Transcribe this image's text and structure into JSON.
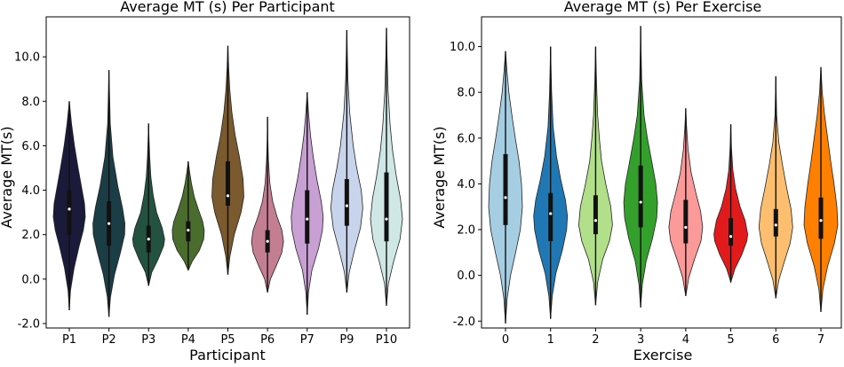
{
  "chart_data": [
    {
      "type": "violin",
      "title": "Average MT (s) Per Participant",
      "xlabel": "Participant",
      "ylabel": "Average MT(s)",
      "ylim": [
        -2.2,
        11.8
      ],
      "yticks": [
        -2.0,
        0.0,
        2.0,
        4.0,
        6.0,
        8.0,
        10.0
      ],
      "ytick_labels": [
        "-2.0",
        "0.0",
        "2.0",
        "4.0",
        "6.0",
        "8.0",
        "10.0"
      ],
      "grid": false,
      "categories": [
        "P1",
        "P2",
        "P3",
        "P4",
        "P5",
        "P6",
        "P7",
        "P9",
        "P10"
      ],
      "colors": [
        "#1a1a3a",
        "#1b3d46",
        "#235241",
        "#4a6d2e",
        "#7a5a2e",
        "#c47e92",
        "#c8a0d4",
        "#c8d4ec",
        "#cfe8e6"
      ],
      "violins": [
        {
          "min": -1.4,
          "max": 8.0,
          "q1": 2.0,
          "median": 3.15,
          "q3": 4.0,
          "profile": [
            [
              -1.4,
              0.0
            ],
            [
              -0.5,
              0.08
            ],
            [
              0.5,
              0.3
            ],
            [
              1.5,
              0.62
            ],
            [
              2.2,
              0.88
            ],
            [
              2.8,
              1.0
            ],
            [
              3.4,
              0.95
            ],
            [
              4.0,
              0.8
            ],
            [
              5.0,
              0.55
            ],
            [
              6.0,
              0.32
            ],
            [
              7.0,
              0.14
            ],
            [
              8.0,
              0.0
            ]
          ]
        },
        {
          "min": -1.7,
          "max": 9.4,
          "q1": 1.5,
          "median": 2.5,
          "q3": 3.5,
          "profile": [
            [
              -1.7,
              0.0
            ],
            [
              -0.8,
              0.1
            ],
            [
              0.2,
              0.35
            ],
            [
              1.2,
              0.72
            ],
            [
              2.0,
              0.98
            ],
            [
              2.5,
              1.0
            ],
            [
              3.2,
              0.85
            ],
            [
              4.2,
              0.55
            ],
            [
              5.5,
              0.25
            ],
            [
              7.0,
              0.08
            ],
            [
              8.5,
              0.03
            ],
            [
              9.4,
              0.0
            ]
          ]
        },
        {
          "min": -0.3,
          "max": 7.0,
          "q1": 1.2,
          "median": 1.8,
          "q3": 2.4,
          "profile": [
            [
              -0.3,
              0.0
            ],
            [
              0.3,
              0.2
            ],
            [
              0.9,
              0.6
            ],
            [
              1.5,
              0.95
            ],
            [
              1.8,
              1.0
            ],
            [
              2.3,
              0.85
            ],
            [
              3.0,
              0.5
            ],
            [
              3.8,
              0.28
            ],
            [
              4.6,
              0.14
            ],
            [
              5.5,
              0.07
            ],
            [
              6.3,
              0.03
            ],
            [
              7.0,
              0.0
            ]
          ]
        },
        {
          "min": 0.4,
          "max": 5.3,
          "q1": 1.7,
          "median": 2.2,
          "q3": 2.6,
          "profile": [
            [
              0.4,
              0.0
            ],
            [
              0.8,
              0.25
            ],
            [
              1.3,
              0.7
            ],
            [
              1.8,
              0.97
            ],
            [
              2.2,
              1.0
            ],
            [
              2.6,
              0.9
            ],
            [
              3.1,
              0.65
            ],
            [
              3.7,
              0.38
            ],
            [
              4.3,
              0.2
            ],
            [
              4.8,
              0.09
            ],
            [
              5.3,
              0.0
            ]
          ]
        },
        {
          "min": 0.2,
          "max": 10.5,
          "q1": 3.3,
          "median": 3.75,
          "q3": 5.3,
          "profile": [
            [
              0.2,
              0.0
            ],
            [
              1.0,
              0.12
            ],
            [
              2.0,
              0.4
            ],
            [
              3.0,
              0.82
            ],
            [
              3.7,
              1.0
            ],
            [
              4.5,
              0.95
            ],
            [
              5.5,
              0.72
            ],
            [
              6.5,
              0.45
            ],
            [
              7.5,
              0.25
            ],
            [
              8.5,
              0.12
            ],
            [
              9.5,
              0.05
            ],
            [
              10.5,
              0.0
            ]
          ]
        },
        {
          "min": -0.6,
          "max": 7.3,
          "q1": 1.2,
          "median": 1.7,
          "q3": 2.2,
          "profile": [
            [
              -0.6,
              0.0
            ],
            [
              0.0,
              0.18
            ],
            [
              0.6,
              0.55
            ],
            [
              1.2,
              0.9
            ],
            [
              1.7,
              1.0
            ],
            [
              2.2,
              0.9
            ],
            [
              2.8,
              0.6
            ],
            [
              3.5,
              0.32
            ],
            [
              4.3,
              0.15
            ],
            [
              5.3,
              0.06
            ],
            [
              6.3,
              0.02
            ],
            [
              7.3,
              0.0
            ]
          ]
        },
        {
          "min": -1.6,
          "max": 8.4,
          "q1": 1.6,
          "median": 2.7,
          "q3": 4.0,
          "profile": [
            [
              -1.6,
              0.0
            ],
            [
              -0.6,
              0.08
            ],
            [
              0.4,
              0.3
            ],
            [
              1.4,
              0.72
            ],
            [
              2.2,
              0.95
            ],
            [
              2.8,
              1.0
            ],
            [
              3.5,
              0.88
            ],
            [
              4.5,
              0.6
            ],
            [
              5.5,
              0.38
            ],
            [
              6.5,
              0.2
            ],
            [
              7.5,
              0.08
            ],
            [
              8.4,
              0.0
            ]
          ]
        },
        {
          "min": -0.6,
          "max": 11.2,
          "q1": 2.4,
          "median": 3.3,
          "q3": 4.5,
          "profile": [
            [
              -0.6,
              0.0
            ],
            [
              0.3,
              0.15
            ],
            [
              1.3,
              0.48
            ],
            [
              2.3,
              0.85
            ],
            [
              3.2,
              1.0
            ],
            [
              4.0,
              0.9
            ],
            [
              5.0,
              0.62
            ],
            [
              6.0,
              0.4
            ],
            [
              7.5,
              0.18
            ],
            [
              9.0,
              0.07
            ],
            [
              10.2,
              0.03
            ],
            [
              11.2,
              0.0
            ]
          ]
        },
        {
          "min": -1.2,
          "max": 11.3,
          "q1": 1.7,
          "median": 2.7,
          "q3": 4.8,
          "profile": [
            [
              -1.2,
              0.0
            ],
            [
              -0.2,
              0.12
            ],
            [
              0.8,
              0.45
            ],
            [
              1.8,
              0.85
            ],
            [
              2.7,
              1.0
            ],
            [
              3.6,
              0.88
            ],
            [
              4.6,
              0.62
            ],
            [
              5.8,
              0.38
            ],
            [
              7.0,
              0.22
            ],
            [
              8.5,
              0.1
            ],
            [
              10.0,
              0.04
            ],
            [
              11.3,
              0.0
            ]
          ]
        }
      ]
    },
    {
      "type": "violin",
      "title": "Average MT (s) Per Exercise",
      "xlabel": "Exercise",
      "ylabel": "Average MT(s)",
      "ylim": [
        -2.3,
        11.3
      ],
      "yticks": [
        -2.0,
        0.0,
        2.0,
        4.0,
        6.0,
        8.0,
        10.0
      ],
      "ytick_labels": [
        "-2.0",
        "0.0",
        "2.0",
        "4.0",
        "6.0",
        "8.0",
        "10.0"
      ],
      "grid": false,
      "categories": [
        "0",
        "1",
        "2",
        "3",
        "4",
        "5",
        "6",
        "7"
      ],
      "colors": [
        "#a6cee3",
        "#1f78b4",
        "#b2df8a",
        "#33a02c",
        "#fb9a99",
        "#e31a1c",
        "#fdbf6f",
        "#ff7f00"
      ],
      "violins": [
        {
          "min": -2.1,
          "max": 9.8,
          "q1": 2.2,
          "median": 3.4,
          "q3": 5.3,
          "profile": [
            [
              -2.1,
              0.0
            ],
            [
              -1.0,
              0.1
            ],
            [
              0.0,
              0.3
            ],
            [
              1.0,
              0.6
            ],
            [
              2.0,
              0.88
            ],
            [
              3.0,
              1.0
            ],
            [
              4.0,
              0.95
            ],
            [
              5.0,
              0.8
            ],
            [
              6.0,
              0.58
            ],
            [
              7.0,
              0.38
            ],
            [
              8.0,
              0.2
            ],
            [
              9.0,
              0.08
            ],
            [
              9.8,
              0.0
            ]
          ]
        },
        {
          "min": -1.9,
          "max": 10.0,
          "q1": 1.5,
          "median": 2.7,
          "q3": 3.6,
          "profile": [
            [
              -1.9,
              0.0
            ],
            [
              -0.9,
              0.1
            ],
            [
              0.1,
              0.32
            ],
            [
              1.1,
              0.7
            ],
            [
              2.0,
              0.95
            ],
            [
              2.6,
              1.0
            ],
            [
              3.3,
              0.88
            ],
            [
              4.2,
              0.6
            ],
            [
              5.2,
              0.35
            ],
            [
              6.5,
              0.15
            ],
            [
              8.0,
              0.06
            ],
            [
              10.0,
              0.0
            ]
          ]
        },
        {
          "min": -1.3,
          "max": 10.0,
          "q1": 1.8,
          "median": 2.4,
          "q3": 3.5,
          "profile": [
            [
              -1.3,
              0.0
            ],
            [
              -0.3,
              0.12
            ],
            [
              0.7,
              0.42
            ],
            [
              1.5,
              0.82
            ],
            [
              2.2,
              1.0
            ],
            [
              3.0,
              0.9
            ],
            [
              4.0,
              0.6
            ],
            [
              5.0,
              0.35
            ],
            [
              6.0,
              0.22
            ],
            [
              7.0,
              0.12
            ],
            [
              8.5,
              0.05
            ],
            [
              10.0,
              0.0
            ]
          ]
        },
        {
          "min": -1.4,
          "max": 10.9,
          "q1": 2.1,
          "median": 3.2,
          "q3": 4.8,
          "profile": [
            [
              -1.4,
              0.0
            ],
            [
              -0.4,
              0.1
            ],
            [
              0.6,
              0.32
            ],
            [
              1.6,
              0.7
            ],
            [
              2.5,
              0.95
            ],
            [
              3.2,
              1.0
            ],
            [
              4.0,
              0.9
            ],
            [
              5.0,
              0.65
            ],
            [
              6.0,
              0.4
            ],
            [
              7.0,
              0.2
            ],
            [
              8.5,
              0.06
            ],
            [
              10.0,
              0.02
            ],
            [
              10.9,
              0.0
            ]
          ]
        },
        {
          "min": -0.9,
          "max": 7.3,
          "q1": 1.4,
          "median": 2.1,
          "q3": 3.3,
          "profile": [
            [
              -0.9,
              0.0
            ],
            [
              -0.1,
              0.18
            ],
            [
              0.7,
              0.52
            ],
            [
              1.5,
              0.9
            ],
            [
              2.1,
              1.0
            ],
            [
              2.8,
              0.88
            ],
            [
              3.6,
              0.6
            ],
            [
              4.5,
              0.32
            ],
            [
              5.5,
              0.14
            ],
            [
              6.5,
              0.05
            ],
            [
              7.3,
              0.0
            ]
          ]
        },
        {
          "min": -0.3,
          "max": 6.6,
          "q1": 1.3,
          "median": 1.7,
          "q3": 2.5,
          "profile": [
            [
              -0.3,
              0.0
            ],
            [
              0.3,
              0.25
            ],
            [
              0.9,
              0.65
            ],
            [
              1.5,
              0.95
            ],
            [
              1.8,
              1.0
            ],
            [
              2.4,
              0.85
            ],
            [
              3.0,
              0.55
            ],
            [
              3.8,
              0.28
            ],
            [
              4.6,
              0.12
            ],
            [
              5.6,
              0.04
            ],
            [
              6.6,
              0.0
            ]
          ]
        },
        {
          "min": -1.0,
          "max": 8.7,
          "q1": 1.7,
          "median": 2.2,
          "q3": 2.9,
          "profile": [
            [
              -1.0,
              0.0
            ],
            [
              -0.2,
              0.18
            ],
            [
              0.6,
              0.5
            ],
            [
              1.4,
              0.85
            ],
            [
              2.1,
              1.0
            ],
            [
              2.9,
              0.9
            ],
            [
              3.8,
              0.65
            ],
            [
              4.8,
              0.4
            ],
            [
              5.8,
              0.18
            ],
            [
              7.0,
              0.05
            ],
            [
              8.7,
              0.0
            ]
          ]
        },
        {
          "min": -1.6,
          "max": 9.1,
          "q1": 1.6,
          "median": 2.4,
          "q3": 3.4,
          "profile": [
            [
              -1.6,
              0.0
            ],
            [
              -0.6,
              0.12
            ],
            [
              0.4,
              0.4
            ],
            [
              1.4,
              0.8
            ],
            [
              2.2,
              1.0
            ],
            [
              3.0,
              0.95
            ],
            [
              4.0,
              0.78
            ],
            [
              5.0,
              0.58
            ],
            [
              6.0,
              0.4
            ],
            [
              7.0,
              0.22
            ],
            [
              8.0,
              0.08
            ],
            [
              9.1,
              0.0
            ]
          ]
        }
      ]
    }
  ]
}
